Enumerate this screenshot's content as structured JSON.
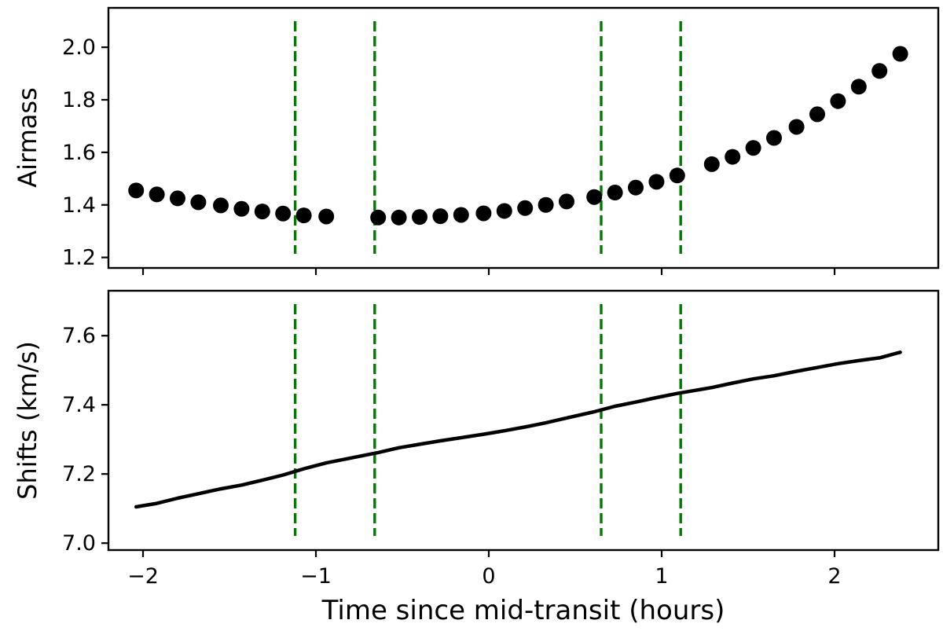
{
  "figure": {
    "xlabel": "Time since mid-transit (hours)"
  },
  "colors": {
    "markers": "#000000",
    "line": "#000000",
    "vlines": "#007a00"
  },
  "chart_data": [
    {
      "type": "scatter",
      "title": "",
      "xlabel": "",
      "ylabel": "Airmass",
      "xlim": [
        -2.2,
        2.6
      ],
      "ylim": [
        1.16,
        2.15
      ],
      "xticks": [
        -2,
        -1,
        0,
        1,
        2
      ],
      "yticks": [
        1.2,
        1.4,
        1.6,
        1.8,
        2.0
      ],
      "ytick_labels": [
        "1.2",
        "1.4",
        "1.6",
        "1.8",
        "2.0"
      ],
      "vlines": [
        -1.12,
        -0.66,
        0.65,
        1.11
      ],
      "grid": false,
      "x": [
        -2.04,
        -1.92,
        -1.8,
        -1.68,
        -1.55,
        -1.43,
        -1.31,
        -1.19,
        -1.07,
        -0.94,
        -0.64,
        -0.52,
        -0.4,
        -0.28,
        -0.16,
        -0.03,
        0.09,
        0.21,
        0.33,
        0.45,
        0.61,
        0.73,
        0.85,
        0.97,
        1.09,
        1.29,
        1.41,
        1.53,
        1.65,
        1.78,
        1.9,
        2.02,
        2.14,
        2.26,
        2.38
      ],
      "y": [
        1.455,
        1.44,
        1.425,
        1.41,
        1.398,
        1.385,
        1.375,
        1.367,
        1.36,
        1.356,
        1.352,
        1.352,
        1.354,
        1.357,
        1.362,
        1.368,
        1.377,
        1.388,
        1.4,
        1.413,
        1.43,
        1.447,
        1.466,
        1.488,
        1.512,
        1.555,
        1.583,
        1.617,
        1.655,
        1.697,
        1.745,
        1.795,
        1.85,
        1.91,
        1.975
      ]
    },
    {
      "type": "line",
      "title": "",
      "xlabel": "Time since mid-transit (hours)",
      "ylabel": "Shifts (km/s)",
      "xlim": [
        -2.2,
        2.6
      ],
      "ylim": [
        6.98,
        7.73
      ],
      "xticks": [
        -2,
        -1,
        0,
        1,
        2
      ],
      "xtick_labels": [
        "−2",
        "−1",
        "0",
        "1",
        "2"
      ],
      "yticks": [
        7.0,
        7.2,
        7.4,
        7.6
      ],
      "ytick_labels": [
        "7.0",
        "7.2",
        "7.4",
        "7.6"
      ],
      "vlines": [
        -1.12,
        -0.66,
        0.65,
        1.11
      ],
      "grid": false,
      "x": [
        -2.04,
        -1.92,
        -1.8,
        -1.68,
        -1.55,
        -1.43,
        -1.31,
        -1.19,
        -1.07,
        -0.94,
        -0.64,
        -0.52,
        -0.4,
        -0.28,
        -0.16,
        -0.03,
        0.09,
        0.21,
        0.33,
        0.45,
        0.61,
        0.73,
        0.85,
        0.97,
        1.09,
        1.29,
        1.41,
        1.53,
        1.65,
        1.78,
        1.9,
        2.02,
        2.14,
        2.26,
        2.38
      ],
      "y": [
        7.105,
        7.115,
        7.13,
        7.143,
        7.157,
        7.168,
        7.182,
        7.197,
        7.215,
        7.232,
        7.262,
        7.276,
        7.286,
        7.296,
        7.305,
        7.315,
        7.325,
        7.336,
        7.348,
        7.362,
        7.38,
        7.396,
        7.408,
        7.421,
        7.433,
        7.45,
        7.463,
        7.475,
        7.484,
        7.497,
        7.508,
        7.519,
        7.528,
        7.536,
        7.552
      ]
    }
  ]
}
